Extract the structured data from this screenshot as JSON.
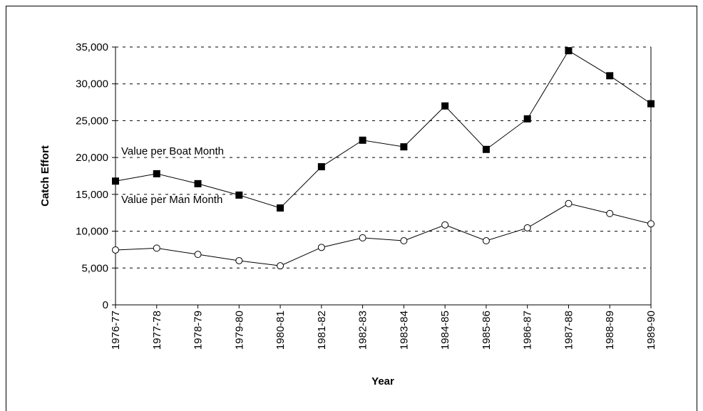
{
  "chart_data": {
    "type": "line",
    "y_label": "Catch Effort",
    "x_label": "Year",
    "annotations": [
      "Value per Boat Month",
      "Value per Man Month"
    ],
    "categories": [
      "1976-77",
      "1977-78",
      "1978-79",
      "1979-80",
      "1980-81",
      "1981-82",
      "1982-83",
      "1983-84",
      "1984-85",
      "1985-86",
      "1986-87",
      "1987-88",
      "1988-89",
      "1989-90"
    ],
    "series": [
      {
        "name": "Value per Boat Month",
        "color": "#000000",
        "marker": "square",
        "marker_fill": "#000000",
        "values": [
          16800,
          17800,
          16450,
          14900,
          13150,
          18750,
          22350,
          21450,
          27000,
          21100,
          25250,
          34500,
          31100,
          27300
        ]
      },
      {
        "name": "Value per Man Month",
        "color": "#000000",
        "marker": "circle",
        "marker_fill": "#ffffff",
        "values": [
          7450,
          7700,
          6850,
          6000,
          5300,
          7800,
          9100,
          8700,
          10850,
          8700,
          10450,
          13750,
          12400,
          11000
        ]
      }
    ],
    "ylim": [
      0,
      35000
    ],
    "yticks": [
      0,
      {
        "value": 5000,
        "label": "5,000"
      },
      {
        "value": 10000,
        "label": "10,000"
      },
      {
        "value": 15000,
        "label": "15,000"
      },
      {
        "value": 20000,
        "label": "20,000"
      },
      {
        "value": 25000,
        "label": "25,000"
      },
      {
        "value": 30000,
        "label": "30,000"
      },
      {
        "value": 35000,
        "label": "35,000"
      }
    ],
    "grid": true
  }
}
